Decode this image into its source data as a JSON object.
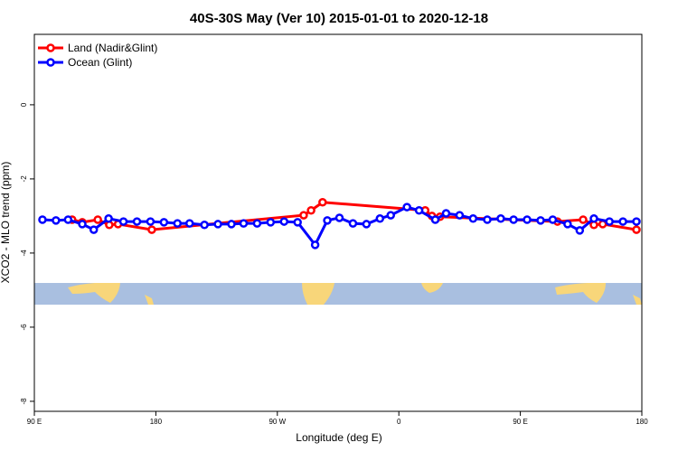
{
  "chart_data": {
    "type": "line",
    "title": "40S-30S May (Ver 10)   2015-01-01 to 2020-12-18",
    "x_label": "Longitude (deg E)",
    "y_label": "XCO2 - MLO trend (ppm)",
    "xlim": [
      90,
      540
    ],
    "ylim": [
      -8.27,
      1.9
    ],
    "xticks": [
      {
        "value": 90,
        "label": "90 E"
      },
      180,
      {
        "value": 270,
        "label": "90 W"
      },
      {
        "value": 360,
        "label": "0"
      },
      {
        "value": 450,
        "label": "90 E"
      },
      {
        "value": 540,
        "label": "180"
      }
    ],
    "yticks": [
      0,
      -2,
      -4,
      -6,
      -8
    ],
    "legend": "top-left",
    "series": [
      {
        "name": "Land (Nadir&Glint)",
        "color": "#ff0000",
        "x": [
          118,
          125.5,
          137,
          145.5,
          152,
          177,
          289.5,
          295,
          303.5,
          379.5,
          384.5,
          390.5,
          477.5,
          496.5,
          504.5,
          511,
          536
        ],
        "values": [
          -3.1,
          -3.17,
          -3.1,
          -3.24,
          -3.22,
          -3.37,
          -2.98,
          -2.85,
          -2.63,
          -2.85,
          -3.0,
          -3.02,
          -3.15,
          -3.1,
          -3.24,
          -3.22,
          -3.37
        ]
      },
      {
        "name": "Ocean (Glint)",
        "color": "#0000ff",
        "x": [
          96,
          106,
          115,
          125.5,
          134,
          145,
          156,
          166,
          176,
          186,
          196,
          205,
          216,
          226,
          236,
          245,
          255,
          265,
          275,
          285,
          298,
          307,
          316,
          326,
          336,
          346,
          354,
          366,
          375,
          387,
          395,
          405,
          415,
          425.5,
          435.5,
          445,
          455,
          465,
          474,
          485,
          494,
          504.5,
          516,
          526,
          536
        ],
        "values": [
          -3.1,
          -3.12,
          -3.1,
          -3.22,
          -3.37,
          -3.07,
          -3.15,
          -3.15,
          -3.15,
          -3.17,
          -3.2,
          -3.2,
          -3.24,
          -3.22,
          -3.22,
          -3.2,
          -3.2,
          -3.17,
          -3.15,
          -3.17,
          -3.78,
          -3.12,
          -3.05,
          -3.2,
          -3.22,
          -3.07,
          -2.98,
          -2.76,
          -2.85,
          -3.1,
          -2.93,
          -2.98,
          -3.07,
          -3.1,
          -3.07,
          -3.1,
          -3.1,
          -3.12,
          -3.1,
          -3.22,
          -3.39,
          -3.07,
          -3.15,
          -3.15,
          -3.15
        ]
      }
    ]
  }
}
